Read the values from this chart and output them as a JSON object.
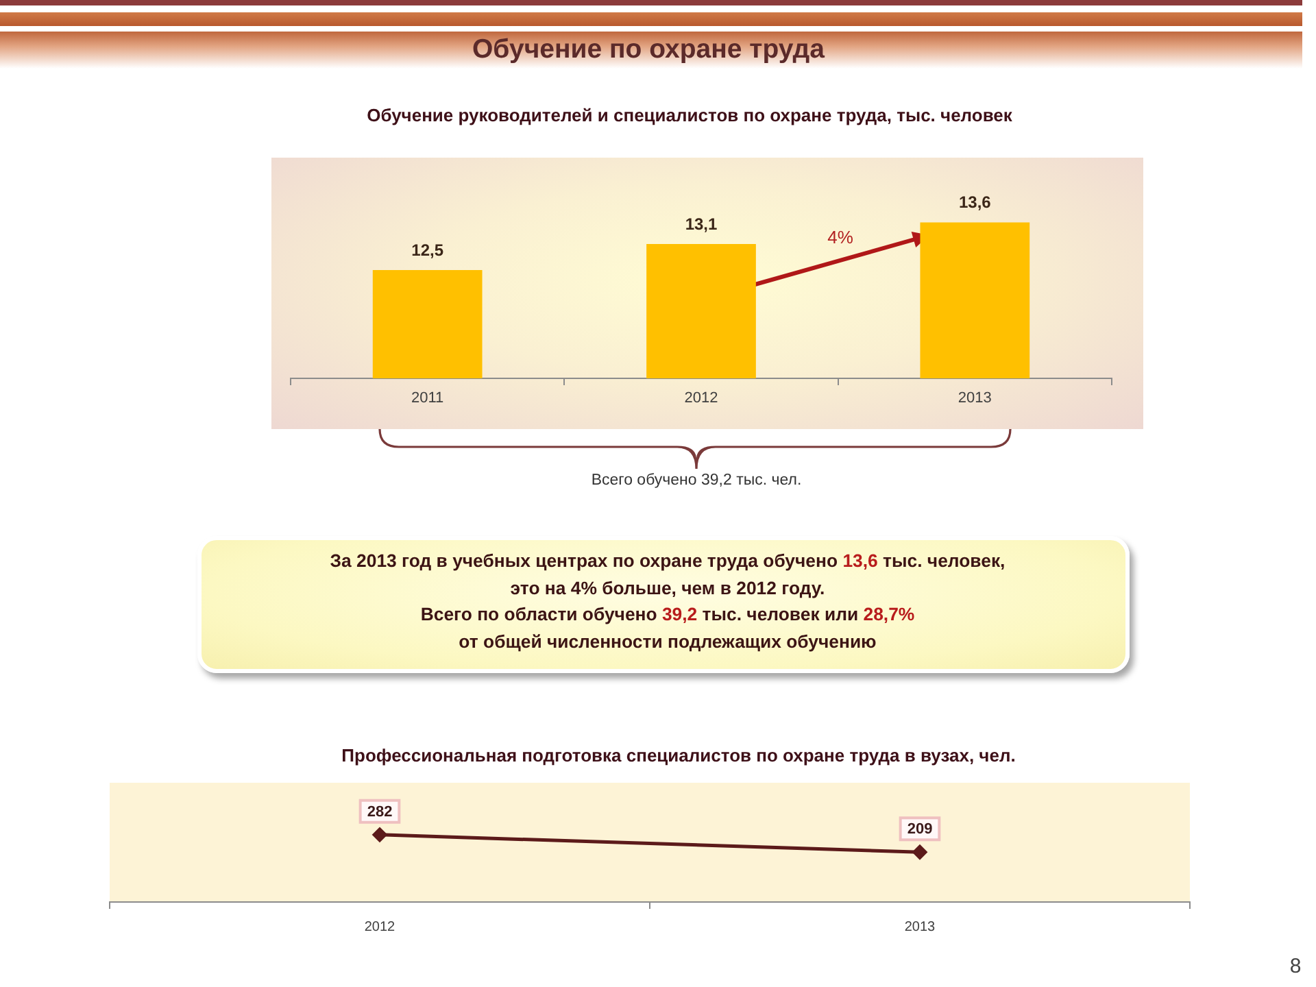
{
  "chart_data": [
    {
      "type": "bar",
      "title": "Обучение по охране труда",
      "subtitle": "Обучение руководителей и специалистов по охране труда, тыс. человек",
      "categories": [
        "2011",
        "2012",
        "2013"
      ],
      "values": [
        12.5,
        13.1,
        13.6
      ],
      "value_labels": [
        "12,5",
        "13,1",
        "13,6"
      ],
      "color": "#ffc000",
      "ylim": [
        10,
        15
      ],
      "tick_labels": "x",
      "annotations": [
        "4%",
        "Всего обучено 39,2 тыс. чел."
      ]
    },
    {
      "type": "other",
      "annotations": [
        "За 2013 год в учебных центрах по охране труда обучено 13,6 тыс. человек,",
        "это на 4% больше, чем в 2012 году.",
        "Всего по области обучено 39,2 тыс. человек или 28,7%",
        "от общей численности подлежащих обучению"
      ]
    },
    {
      "type": "line",
      "title": "Профессиональная подготовка специалистов по охране труда в вузах, чел.",
      "categories": [
        "2012",
        "2013"
      ],
      "values": [
        282,
        209
      ],
      "data_labels": true,
      "color": "#5c1a1a",
      "ylim": [
        0,
        500
      ],
      "tick_labels": "x",
      "marker": "diamond",
      "annotations": [
        "8"
      ]
    }
  ]
}
